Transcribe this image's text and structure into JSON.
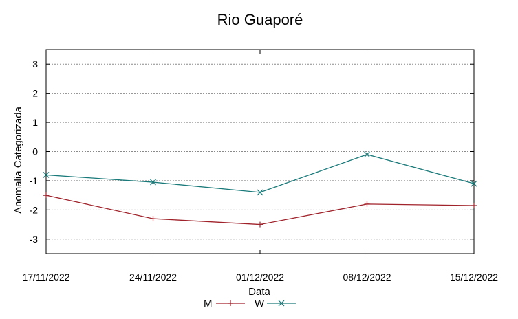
{
  "chart_data": {
    "type": "line",
    "title": "Rio Guaporé",
    "xlabel": "Data",
    "ylabel": "Anomalia Categorizada",
    "categories": [
      "17/11/2022",
      "24/11/2022",
      "01/12/2022",
      "08/12/2022",
      "15/12/2022"
    ],
    "yticks": [
      "3",
      "2",
      "1",
      "0",
      "-1",
      "-2",
      "-3"
    ],
    "ylim": [
      -3.5,
      3.5
    ],
    "grid": true,
    "legend_position": "bottom-center",
    "series": [
      {
        "name": "M",
        "color": "#a0222a",
        "marker": "plus",
        "values": [
          -1.5,
          -2.3,
          -2.5,
          -1.8,
          -1.85
        ]
      },
      {
        "name": "W",
        "color": "#1a7a7a",
        "marker": "x",
        "values": [
          -0.8,
          -1.05,
          -1.4,
          -0.1,
          -1.1
        ]
      }
    ]
  }
}
